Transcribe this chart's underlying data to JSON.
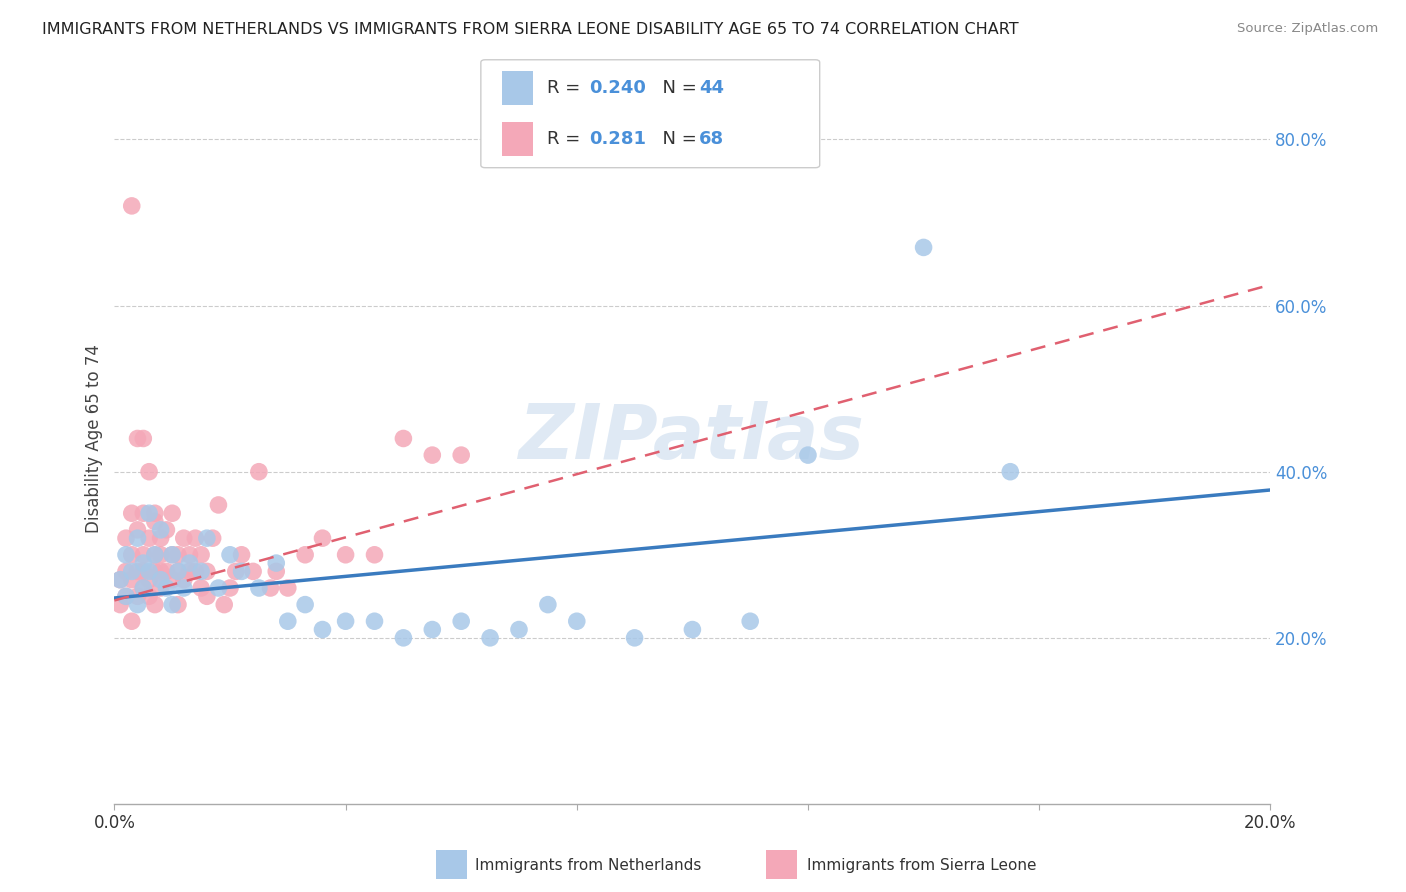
{
  "title": "IMMIGRANTS FROM NETHERLANDS VS IMMIGRANTS FROM SIERRA LEONE DISABILITY AGE 65 TO 74 CORRELATION CHART",
  "source": "Source: ZipAtlas.com",
  "ylabel": "Disability Age 65 to 74",
  "xlim": [
    0.0,
    0.2
  ],
  "ylim": [
    0.0,
    0.88
  ],
  "ytick_positions": [
    0.2,
    0.4,
    0.6,
    0.8
  ],
  "yticklabels": [
    "20.0%",
    "40.0%",
    "60.0%",
    "80.0%"
  ],
  "legend1_label": "Immigrants from Netherlands",
  "legend2_label": "Immigrants from Sierra Leone",
  "r1": 0.24,
  "n1": 44,
  "r2": 0.281,
  "n2": 68,
  "color_netherlands": "#a8c8e8",
  "color_sierra_leone": "#f4a8b8",
  "trendline_netherlands_color": "#3a7bbf",
  "trendline_sierra_leone_color": "#e06070",
  "watermark": "ZIPatlas",
  "nl_trendline_x0": 0.0,
  "nl_trendline_y0": 0.248,
  "nl_trendline_x1": 0.2,
  "nl_trendline_y1": 0.378,
  "sl_trendline_x0": 0.0,
  "sl_trendline_y0": 0.245,
  "sl_trendline_x1": 0.2,
  "sl_trendline_y1": 0.625,
  "netherlands_x": [
    0.001,
    0.002,
    0.002,
    0.003,
    0.004,
    0.004,
    0.005,
    0.005,
    0.006,
    0.006,
    0.007,
    0.008,
    0.008,
    0.009,
    0.01,
    0.01,
    0.011,
    0.012,
    0.013,
    0.015,
    0.016,
    0.018,
    0.02,
    0.022,
    0.025,
    0.028,
    0.03,
    0.033,
    0.036,
    0.04,
    0.045,
    0.05,
    0.055,
    0.06,
    0.065,
    0.07,
    0.075,
    0.08,
    0.09,
    0.1,
    0.11,
    0.12,
    0.14,
    0.155
  ],
  "netherlands_y": [
    0.27,
    0.3,
    0.25,
    0.28,
    0.32,
    0.24,
    0.29,
    0.26,
    0.28,
    0.35,
    0.3,
    0.27,
    0.33,
    0.26,
    0.3,
    0.24,
    0.28,
    0.26,
    0.29,
    0.28,
    0.32,
    0.26,
    0.3,
    0.28,
    0.26,
    0.29,
    0.22,
    0.24,
    0.21,
    0.22,
    0.22,
    0.2,
    0.21,
    0.22,
    0.2,
    0.21,
    0.24,
    0.22,
    0.2,
    0.21,
    0.22,
    0.42,
    0.67,
    0.4
  ],
  "sierra_leone_x": [
    0.001,
    0.001,
    0.002,
    0.002,
    0.002,
    0.003,
    0.003,
    0.003,
    0.003,
    0.004,
    0.004,
    0.004,
    0.005,
    0.005,
    0.005,
    0.005,
    0.006,
    0.006,
    0.006,
    0.007,
    0.007,
    0.007,
    0.007,
    0.008,
    0.008,
    0.008,
    0.008,
    0.009,
    0.009,
    0.01,
    0.01,
    0.01,
    0.011,
    0.011,
    0.011,
    0.012,
    0.012,
    0.013,
    0.013,
    0.014,
    0.014,
    0.015,
    0.015,
    0.016,
    0.016,
    0.017,
    0.018,
    0.019,
    0.02,
    0.021,
    0.022,
    0.024,
    0.025,
    0.027,
    0.028,
    0.03,
    0.033,
    0.036,
    0.04,
    0.045,
    0.05,
    0.055,
    0.06,
    0.003,
    0.004,
    0.005,
    0.006,
    0.007
  ],
  "sierra_leone_y": [
    0.27,
    0.24,
    0.32,
    0.28,
    0.25,
    0.3,
    0.35,
    0.27,
    0.22,
    0.28,
    0.33,
    0.25,
    0.3,
    0.26,
    0.28,
    0.35,
    0.27,
    0.32,
    0.25,
    0.3,
    0.28,
    0.35,
    0.24,
    0.32,
    0.28,
    0.26,
    0.3,
    0.28,
    0.33,
    0.3,
    0.27,
    0.35,
    0.3,
    0.28,
    0.24,
    0.32,
    0.27,
    0.28,
    0.3,
    0.28,
    0.32,
    0.26,
    0.3,
    0.28,
    0.25,
    0.32,
    0.36,
    0.24,
    0.26,
    0.28,
    0.3,
    0.28,
    0.4,
    0.26,
    0.28,
    0.26,
    0.3,
    0.32,
    0.3,
    0.3,
    0.44,
    0.42,
    0.42,
    0.72,
    0.44,
    0.44,
    0.4,
    0.34
  ]
}
